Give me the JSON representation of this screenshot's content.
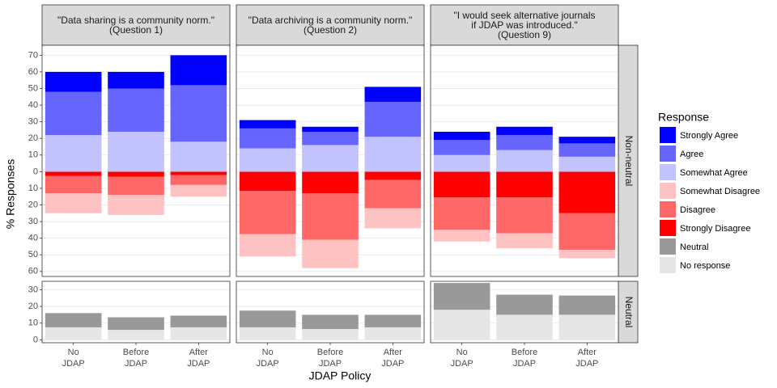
{
  "chart_data": {
    "type": "bar",
    "x_label": "JDAP Policy",
    "y_label": "% Responses",
    "categories": [
      "No\nJDAP",
      "Before\nJDAP",
      "After\nJDAP"
    ],
    "panels": [
      "\"Data sharing is a community norm.\"\n(Question 1)",
      "\"Data archiving is a community norm.\"\n(Question 2)",
      "\"I would seek alternative journals\nif JDAP was introduced.\"\n(Question 9)"
    ],
    "rows": [
      {
        "label": "Non-neutral",
        "ylim": [
          -63,
          76
        ],
        "yticks": [
          {
            "value": -60,
            "label": "60"
          },
          {
            "value": -50,
            "label": "50"
          },
          {
            "value": -40,
            "label": "40"
          },
          {
            "value": -30,
            "label": "30"
          },
          {
            "value": -20,
            "label": "20"
          },
          {
            "value": -10,
            "label": "10"
          },
          0,
          10,
          20,
          30,
          40,
          50,
          60,
          70
        ]
      },
      {
        "label": "Neutral",
        "ylim": [
          -1.7,
          35
        ],
        "yticks": [
          0,
          10,
          20,
          30
        ]
      }
    ],
    "grid": true,
    "legend_title": "Response",
    "legend_position": "right",
    "series": [
      {
        "name": "Strongly Agree",
        "color": "#0000ff",
        "row": 0,
        "values": [
          [
            12,
            10,
            18
          ],
          [
            5,
            3,
            9
          ],
          [
            5,
            5,
            4
          ]
        ]
      },
      {
        "name": "Agree",
        "color": "#6666ff",
        "row": 0,
        "values": [
          [
            26,
            26,
            34
          ],
          [
            12,
            8,
            21
          ],
          [
            9,
            9,
            8
          ]
        ]
      },
      {
        "name": "Somewhat Agree",
        "color": "#c2c2ff",
        "row": 0,
        "values": [
          [
            22,
            24,
            18
          ],
          [
            14,
            16,
            21
          ],
          [
            10,
            13,
            9
          ]
        ]
      },
      {
        "name": "Somewhat Disagree",
        "color": "#ffc2c2",
        "row": 0,
        "values": [
          [
            -12,
            -12,
            -7
          ],
          [
            -13.5,
            -17,
            -12
          ],
          [
            -7,
            -9,
            -5
          ]
        ]
      },
      {
        "name": "Disagree",
        "color": "#ff6666",
        "row": 0,
        "values": [
          [
            -10.5,
            -11,
            -6
          ],
          [
            -26,
            -28,
            -17
          ],
          [
            -19.5,
            -21.5,
            -22
          ]
        ]
      },
      {
        "name": "Strongly Disagree",
        "color": "#ff0000",
        "row": 0,
        "values": [
          [
            -2.5,
            -3,
            -2
          ],
          [
            -11.5,
            -13,
            -5
          ],
          [
            -15.5,
            -15.5,
            -25
          ]
        ]
      },
      {
        "name": "Neutral",
        "color": "#999999",
        "row": 1,
        "values": [
          [
            8.5,
            7.5,
            7
          ],
          [
            10,
            8.5,
            7.5
          ],
          [
            16,
            12,
            11.5
          ]
        ]
      },
      {
        "name": "No response",
        "color": "#e6e6e6",
        "row": 1,
        "values": [
          [
            7.5,
            6,
            7.5
          ],
          [
            7.5,
            6.5,
            7.5
          ],
          [
            18,
            15,
            15
          ]
        ]
      }
    ]
  }
}
